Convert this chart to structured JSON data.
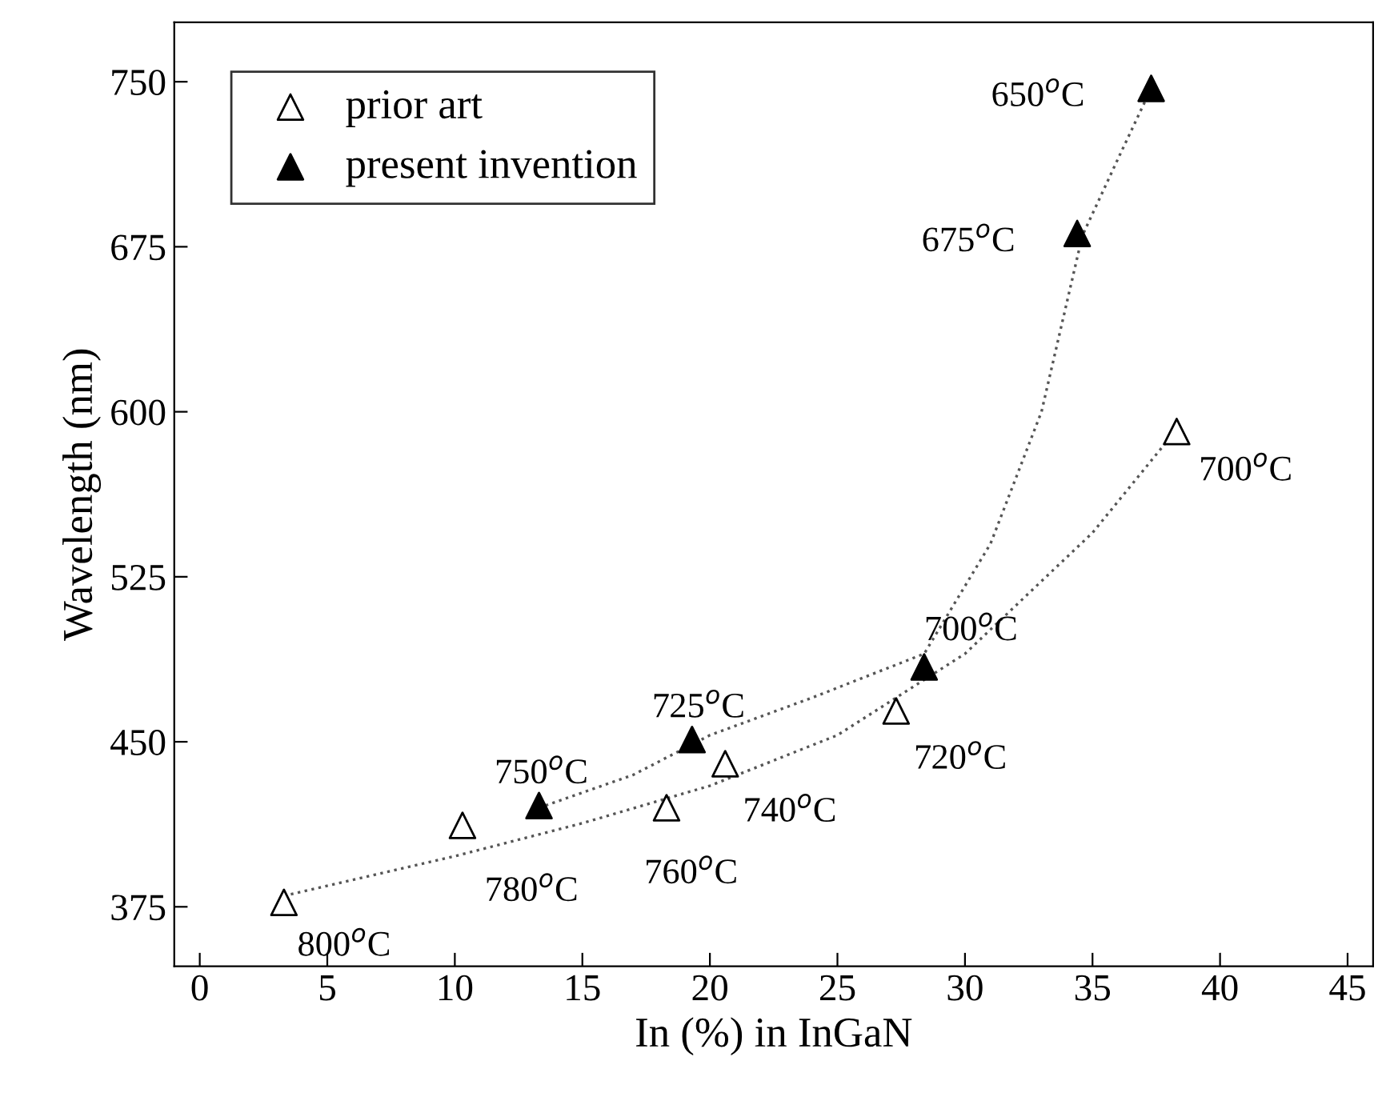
{
  "chart_data": {
    "type": "scatter",
    "xlabel": "In (%) in InGaN",
    "ylabel": "Wavelength (nm)",
    "xlim": [
      -1,
      46
    ],
    "ylim": [
      348,
      777
    ],
    "xticks": [
      0,
      5,
      10,
      15,
      20,
      25,
      30,
      35,
      40,
      45
    ],
    "yticks": [
      375,
      450,
      525,
      600,
      675,
      750
    ],
    "grid": false,
    "legend": "top left",
    "series": [
      {
        "name": "prior art",
        "marker": "triangle",
        "color": "#ffffff",
        "x": [
          3.3,
          10.3,
          18.3,
          20.6,
          27.3,
          38.3
        ],
        "values": [
          377,
          412,
          420,
          440,
          464,
          591
        ]
      },
      {
        "name": "present invention",
        "marker": "triangle",
        "color": "#000000",
        "x": [
          13.3,
          19.3,
          28.4,
          34.4,
          37.3
        ],
        "values": [
          421,
          451,
          484,
          681,
          747
        ]
      },
      {
        "type": "line",
        "marker": "none",
        "line_style": "dotted",
        "color": "#555555",
        "x": [
          3.3,
          10,
          15,
          20,
          25,
          30,
          35,
          38.3
        ],
        "values": [
          380,
          398,
          413,
          430,
          453,
          490,
          545,
          592
        ]
      },
      {
        "type": "line",
        "marker": "none",
        "line_style": "dotted",
        "color": "#555555",
        "x": [
          13.3,
          17,
          20,
          24,
          28.4,
          31,
          33,
          34.6,
          36,
          37.3
        ],
        "values": [
          420,
          435,
          453,
          470,
          490,
          540,
          600,
          680,
          715,
          747
        ]
      }
    ],
    "annotations": [
      {
        "text": "650$^{o}$C",
        "x": 37.3,
        "y": 747
      },
      {
        "text": "675$^{o}$C",
        "x": 34.4,
        "y": 681
      },
      {
        "text": "700$^{o}$C",
        "x": 38.3,
        "y": 591
      },
      {
        "text": "700$^{o}$C",
        "x": 28.4,
        "y": 484
      },
      {
        "text": "725$^{o}$C",
        "x": 19.3,
        "y": 451
      },
      {
        "text": "750$^{o}$C",
        "x": 13.3,
        "y": 421
      },
      {
        "text": "740$^{o}$C",
        "x": 20.6,
        "y": 440
      },
      {
        "text": "720$^{o}$C",
        "x": 27.3,
        "y": 464
      },
      {
        "text": "760$^{o}$C",
        "x": 18.3,
        "y": 420
      },
      {
        "text": "780$^{o}$C",
        "x": 10.3,
        "y": 412
      },
      {
        "text": "800$^{o}$C",
        "x": 3.3,
        "y": 377
      }
    ]
  }
}
